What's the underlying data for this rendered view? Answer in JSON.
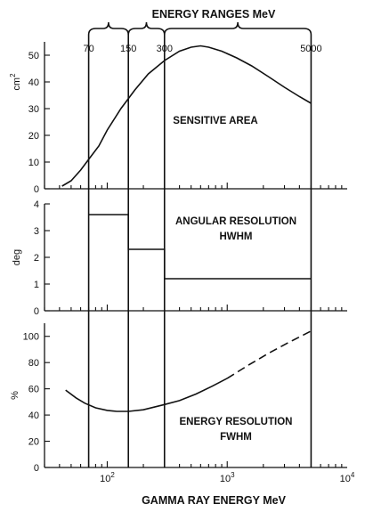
{
  "chart_data": {
    "type": "line",
    "title": "ENERGY RANGES MeV",
    "xlabel": "GAMMA RAY ENERGY MeV",
    "xscale": "log",
    "xlim": [
      30,
      10000
    ],
    "x_tick_labels": [
      {
        "value": 100,
        "base": "10",
        "exp": "2"
      },
      {
        "value": 1000,
        "base": "10",
        "exp": "3"
      },
      {
        "value": 10000,
        "base": "10",
        "exp": "4"
      }
    ],
    "energy_ranges": [
      70,
      150,
      300,
      5000
    ],
    "energy_range_labels": [
      "70",
      "150",
      "300",
      "5000"
    ],
    "panels": [
      {
        "key": "area",
        "ylabel_main": "cm",
        "ylabel_sup": "2",
        "ylim": [
          0,
          55
        ],
        "yticks": [
          0,
          10,
          20,
          30,
          40,
          50
        ],
        "annotation": [
          "SENSITIVE AREA"
        ],
        "series": [
          {
            "style": "solid",
            "x": [
              42,
              50,
              60,
              70,
              85,
              100,
              130,
              170,
              220,
              300,
              400,
              500,
              600,
              700,
              900,
              1200,
              1600,
              2200,
              3000,
              4000,
              5000
            ],
            "y": [
              1,
              3,
              7,
              11,
              16,
              22,
              30,
              37,
              43,
              48,
              51.5,
              53,
              53.5,
              53,
              51.5,
              49,
              46,
              42,
              38,
              34.5,
              32
            ]
          }
        ]
      },
      {
        "key": "angular",
        "ylabel_main": "deg",
        "ylim": [
          0,
          4
        ],
        "yticks": [
          0,
          1,
          2,
          3,
          4
        ],
        "annotation": [
          "ANGULAR RESOLUTION",
          "HWHM"
        ],
        "series": [
          {
            "style": "step",
            "x": [
              70,
              150,
              150,
              300,
              300,
              5000
            ],
            "y": [
              3.6,
              3.6,
              2.3,
              2.3,
              1.2,
              1.2
            ]
          }
        ]
      },
      {
        "key": "energy",
        "ylabel_main": "%",
        "ylim": [
          0,
          110
        ],
        "yticks": [
          0,
          20,
          40,
          60,
          80,
          100
        ],
        "annotation": [
          "ENERGY RESOLUTION",
          "FWHM"
        ],
        "series": [
          {
            "style": "solid",
            "x": [
              45,
              55,
              65,
              80,
              100,
              120,
              150,
              200,
              300,
              400,
              550,
              750,
              1000
            ],
            "y": [
              59,
              53,
              49,
              45.5,
              43.5,
              42.8,
              42.8,
              44,
              48,
              51,
              56,
              62,
              68
            ]
          },
          {
            "style": "dashed",
            "x": [
              1000,
              1500,
              2200,
              3200,
              5000
            ],
            "y": [
              68,
              78,
              87,
              95,
              104
            ]
          }
        ]
      }
    ]
  }
}
